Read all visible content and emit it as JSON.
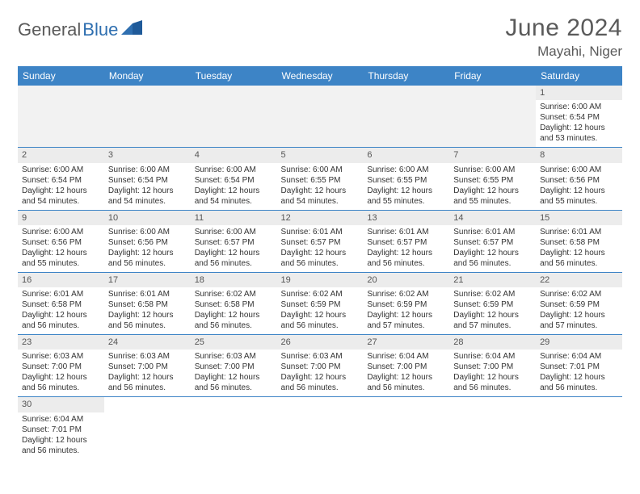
{
  "brand": {
    "part1": "General",
    "part2": "Blue"
  },
  "title": "June 2024",
  "location": "Mayahi, Niger",
  "colors": {
    "header_bg": "#3d84c6",
    "header_fg": "#ffffff",
    "daynum_bg": "#ececec",
    "empty_bg": "#f2f2f2",
    "rule": "#3d84c6",
    "title_color": "#5a5a5a",
    "logo_accent": "#2f6fb0"
  },
  "weekdays": [
    "Sunday",
    "Monday",
    "Tuesday",
    "Wednesday",
    "Thursday",
    "Friday",
    "Saturday"
  ],
  "weeks": [
    [
      null,
      null,
      null,
      null,
      null,
      null,
      {
        "n": "1",
        "sunrise": "Sunrise: 6:00 AM",
        "sunset": "Sunset: 6:54 PM",
        "day1": "Daylight: 12 hours",
        "day2": "and 53 minutes."
      }
    ],
    [
      {
        "n": "2",
        "sunrise": "Sunrise: 6:00 AM",
        "sunset": "Sunset: 6:54 PM",
        "day1": "Daylight: 12 hours",
        "day2": "and 54 minutes."
      },
      {
        "n": "3",
        "sunrise": "Sunrise: 6:00 AM",
        "sunset": "Sunset: 6:54 PM",
        "day1": "Daylight: 12 hours",
        "day2": "and 54 minutes."
      },
      {
        "n": "4",
        "sunrise": "Sunrise: 6:00 AM",
        "sunset": "Sunset: 6:54 PM",
        "day1": "Daylight: 12 hours",
        "day2": "and 54 minutes."
      },
      {
        "n": "5",
        "sunrise": "Sunrise: 6:00 AM",
        "sunset": "Sunset: 6:55 PM",
        "day1": "Daylight: 12 hours",
        "day2": "and 54 minutes."
      },
      {
        "n": "6",
        "sunrise": "Sunrise: 6:00 AM",
        "sunset": "Sunset: 6:55 PM",
        "day1": "Daylight: 12 hours",
        "day2": "and 55 minutes."
      },
      {
        "n": "7",
        "sunrise": "Sunrise: 6:00 AM",
        "sunset": "Sunset: 6:55 PM",
        "day1": "Daylight: 12 hours",
        "day2": "and 55 minutes."
      },
      {
        "n": "8",
        "sunrise": "Sunrise: 6:00 AM",
        "sunset": "Sunset: 6:56 PM",
        "day1": "Daylight: 12 hours",
        "day2": "and 55 minutes."
      }
    ],
    [
      {
        "n": "9",
        "sunrise": "Sunrise: 6:00 AM",
        "sunset": "Sunset: 6:56 PM",
        "day1": "Daylight: 12 hours",
        "day2": "and 55 minutes."
      },
      {
        "n": "10",
        "sunrise": "Sunrise: 6:00 AM",
        "sunset": "Sunset: 6:56 PM",
        "day1": "Daylight: 12 hours",
        "day2": "and 56 minutes."
      },
      {
        "n": "11",
        "sunrise": "Sunrise: 6:00 AM",
        "sunset": "Sunset: 6:57 PM",
        "day1": "Daylight: 12 hours",
        "day2": "and 56 minutes."
      },
      {
        "n": "12",
        "sunrise": "Sunrise: 6:01 AM",
        "sunset": "Sunset: 6:57 PM",
        "day1": "Daylight: 12 hours",
        "day2": "and 56 minutes."
      },
      {
        "n": "13",
        "sunrise": "Sunrise: 6:01 AM",
        "sunset": "Sunset: 6:57 PM",
        "day1": "Daylight: 12 hours",
        "day2": "and 56 minutes."
      },
      {
        "n": "14",
        "sunrise": "Sunrise: 6:01 AM",
        "sunset": "Sunset: 6:57 PM",
        "day1": "Daylight: 12 hours",
        "day2": "and 56 minutes."
      },
      {
        "n": "15",
        "sunrise": "Sunrise: 6:01 AM",
        "sunset": "Sunset: 6:58 PM",
        "day1": "Daylight: 12 hours",
        "day2": "and 56 minutes."
      }
    ],
    [
      {
        "n": "16",
        "sunrise": "Sunrise: 6:01 AM",
        "sunset": "Sunset: 6:58 PM",
        "day1": "Daylight: 12 hours",
        "day2": "and 56 minutes."
      },
      {
        "n": "17",
        "sunrise": "Sunrise: 6:01 AM",
        "sunset": "Sunset: 6:58 PM",
        "day1": "Daylight: 12 hours",
        "day2": "and 56 minutes."
      },
      {
        "n": "18",
        "sunrise": "Sunrise: 6:02 AM",
        "sunset": "Sunset: 6:58 PM",
        "day1": "Daylight: 12 hours",
        "day2": "and 56 minutes."
      },
      {
        "n": "19",
        "sunrise": "Sunrise: 6:02 AM",
        "sunset": "Sunset: 6:59 PM",
        "day1": "Daylight: 12 hours",
        "day2": "and 56 minutes."
      },
      {
        "n": "20",
        "sunrise": "Sunrise: 6:02 AM",
        "sunset": "Sunset: 6:59 PM",
        "day1": "Daylight: 12 hours",
        "day2": "and 57 minutes."
      },
      {
        "n": "21",
        "sunrise": "Sunrise: 6:02 AM",
        "sunset": "Sunset: 6:59 PM",
        "day1": "Daylight: 12 hours",
        "day2": "and 57 minutes."
      },
      {
        "n": "22",
        "sunrise": "Sunrise: 6:02 AM",
        "sunset": "Sunset: 6:59 PM",
        "day1": "Daylight: 12 hours",
        "day2": "and 57 minutes."
      }
    ],
    [
      {
        "n": "23",
        "sunrise": "Sunrise: 6:03 AM",
        "sunset": "Sunset: 7:00 PM",
        "day1": "Daylight: 12 hours",
        "day2": "and 56 minutes."
      },
      {
        "n": "24",
        "sunrise": "Sunrise: 6:03 AM",
        "sunset": "Sunset: 7:00 PM",
        "day1": "Daylight: 12 hours",
        "day2": "and 56 minutes."
      },
      {
        "n": "25",
        "sunrise": "Sunrise: 6:03 AM",
        "sunset": "Sunset: 7:00 PM",
        "day1": "Daylight: 12 hours",
        "day2": "and 56 minutes."
      },
      {
        "n": "26",
        "sunrise": "Sunrise: 6:03 AM",
        "sunset": "Sunset: 7:00 PM",
        "day1": "Daylight: 12 hours",
        "day2": "and 56 minutes."
      },
      {
        "n": "27",
        "sunrise": "Sunrise: 6:04 AM",
        "sunset": "Sunset: 7:00 PM",
        "day1": "Daylight: 12 hours",
        "day2": "and 56 minutes."
      },
      {
        "n": "28",
        "sunrise": "Sunrise: 6:04 AM",
        "sunset": "Sunset: 7:00 PM",
        "day1": "Daylight: 12 hours",
        "day2": "and 56 minutes."
      },
      {
        "n": "29",
        "sunrise": "Sunrise: 6:04 AM",
        "sunset": "Sunset: 7:01 PM",
        "day1": "Daylight: 12 hours",
        "day2": "and 56 minutes."
      }
    ],
    [
      {
        "n": "30",
        "sunrise": "Sunrise: 6:04 AM",
        "sunset": "Sunset: 7:01 PM",
        "day1": "Daylight: 12 hours",
        "day2": "and 56 minutes."
      },
      null,
      null,
      null,
      null,
      null,
      null
    ]
  ]
}
